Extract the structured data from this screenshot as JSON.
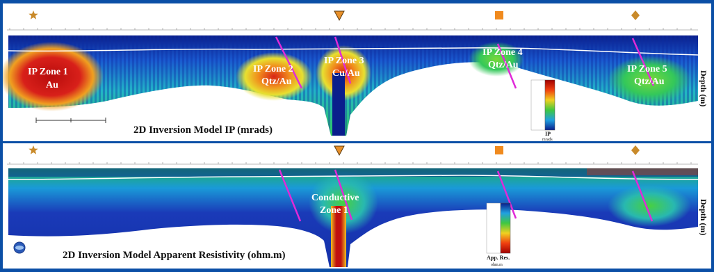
{
  "panels": {
    "ip": {
      "title": "2D Inversion Model IP (mrads)",
      "depth_label": "Depth (m)",
      "legend_label": "IP",
      "legend_unit": "mrads",
      "zones": [
        {
          "line1": "IP Zone 1",
          "line2": "Au"
        },
        {
          "line1": "IP Zone 2",
          "line2": "Qtz/Au"
        },
        {
          "line1": "IP Zone 3",
          "line2": "Cu/Au"
        },
        {
          "line1": "IP Zone 4",
          "line2": "Qtz/Au"
        },
        {
          "line1": "IP Zone 5",
          "line2": "Qtz/Au"
        }
      ]
    },
    "resistivity": {
      "title": "2D Inversion Model Apparent Resistivity (ohm.m)",
      "depth_label": "Depth (m)",
      "legend_label": "App. Res.",
      "legend_unit": "ohm.m",
      "zones": [
        {
          "line1": "Conductive",
          "line2": "Zone 1"
        }
      ]
    }
  },
  "markers": [
    {
      "shape": "star-icon",
      "color": "#c98a2a"
    },
    {
      "shape": "triangle-down-icon",
      "color": "#e8902a"
    },
    {
      "shape": "square-icon",
      "color": "#f08a1e"
    },
    {
      "shape": "diamond-icon",
      "color": "#c98a2a"
    }
  ],
  "colors": {
    "frame": "#0b4fa6",
    "fault_lines": "#e02ad8",
    "high": "#c81414",
    "mid": "#2ec84a",
    "low": "#0a1e8c"
  }
}
